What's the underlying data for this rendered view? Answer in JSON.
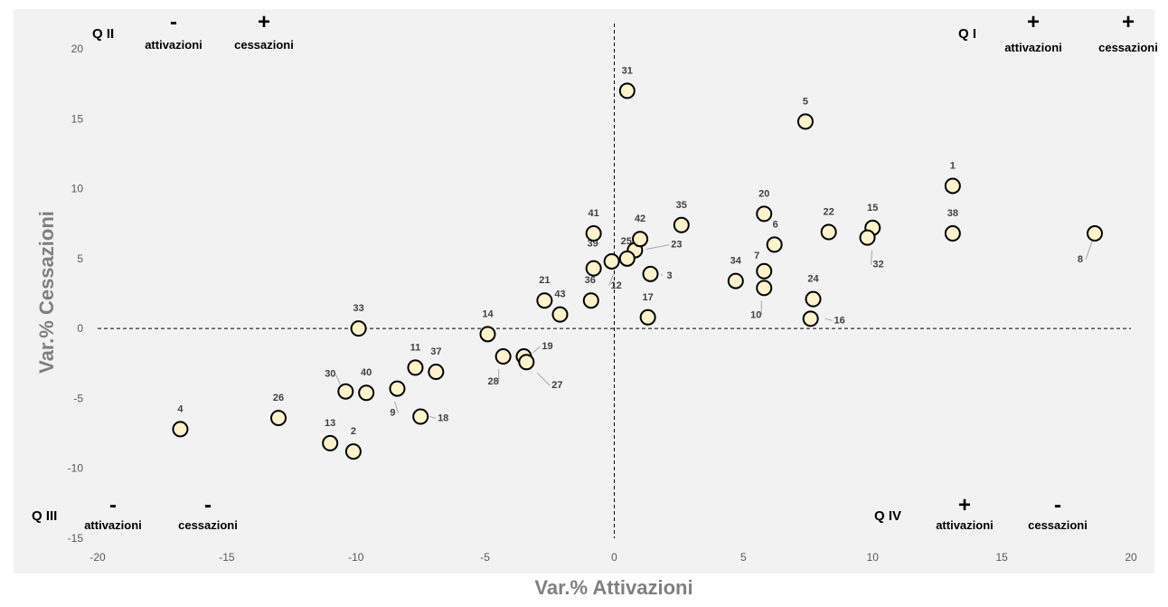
{
  "chart_data": {
    "type": "scatter",
    "title": "",
    "xlabel": "Var.% Attivazioni",
    "ylabel": "Var.% Cessazioni",
    "xlim": [
      -20,
      20
    ],
    "ylim": [
      -15,
      20
    ],
    "xticks": [
      -20,
      -15,
      -10,
      -5,
      0,
      5,
      10,
      15,
      20
    ],
    "yticks": [
      -15,
      -10,
      -5,
      0,
      5,
      10,
      15,
      20
    ],
    "grid": false,
    "colors": {
      "plot_bg": "#f2f2f2",
      "marker_fill": "#fff2cc",
      "marker_stroke": "#000000",
      "axis_line": "#000000",
      "leader": "#a6a6a6"
    },
    "quadrants": [
      {
        "title": "Q I",
        "sign_1": "+",
        "word_1": "attivazioni",
        "sign_2": "+",
        "word_2": "cessazioni"
      },
      {
        "title": "Q II",
        "sign_1": "-",
        "word_1": "attivazioni",
        "sign_2": "+",
        "word_2": "cessazioni"
      },
      {
        "title": "Q III",
        "sign_1": "-",
        "word_1": "attivazioni",
        "sign_2": "-",
        "word_2": "cessazioni"
      },
      {
        "title": "Q IV",
        "sign_1": "+",
        "word_1": "attivazioni",
        "sign_2": "-",
        "word_2": "cessazioni"
      }
    ],
    "points": [
      {
        "label": "1",
        "x": 13.1,
        "y": 10.2
      },
      {
        "label": "2",
        "x": -10.1,
        "y": -8.8
      },
      {
        "label": "3",
        "x": 1.4,
        "y": 3.9
      },
      {
        "label": "4",
        "x": -16.8,
        "y": -7.2
      },
      {
        "label": "5",
        "x": 7.4,
        "y": 14.8
      },
      {
        "label": "6",
        "x": 6.2,
        "y": 6.0
      },
      {
        "label": "7",
        "x": 5.8,
        "y": 4.1
      },
      {
        "label": "8",
        "x": 18.6,
        "y": 6.8
      },
      {
        "label": "9",
        "x": -8.4,
        "y": -4.3
      },
      {
        "label": "10",
        "x": 5.8,
        "y": 2.9
      },
      {
        "label": "11",
        "x": -7.7,
        "y": -2.8
      },
      {
        "label": "12",
        "x": -0.1,
        "y": 4.8
      },
      {
        "label": "13",
        "x": -11.0,
        "y": -8.2
      },
      {
        "label": "14",
        "x": -4.9,
        "y": -0.4
      },
      {
        "label": "15",
        "x": 10.0,
        "y": 7.2
      },
      {
        "label": "16",
        "x": 7.6,
        "y": 0.7
      },
      {
        "label": "17",
        "x": 1.3,
        "y": 0.8
      },
      {
        "label": "18",
        "x": -7.5,
        "y": -6.3
      },
      {
        "label": "19",
        "x": -3.5,
        "y": -2.0
      },
      {
        "label": "20",
        "x": 5.8,
        "y": 8.2
      },
      {
        "label": "21",
        "x": -2.7,
        "y": 2.0
      },
      {
        "label": "22",
        "x": 8.3,
        "y": 6.9
      },
      {
        "label": "23",
        "x": 0.8,
        "y": 5.6
      },
      {
        "label": "24",
        "x": 7.7,
        "y": 2.1
      },
      {
        "label": "25",
        "x": 0.5,
        "y": 5.0
      },
      {
        "label": "26",
        "x": -13.0,
        "y": -6.4
      },
      {
        "label": "27",
        "x": -3.4,
        "y": -2.4
      },
      {
        "label": "28",
        "x": -4.3,
        "y": -2.0
      },
      {
        "label": "30",
        "x": -10.4,
        "y": -4.5
      },
      {
        "label": "31",
        "x": 0.5,
        "y": 17.0
      },
      {
        "label": "32",
        "x": 9.8,
        "y": 6.5
      },
      {
        "label": "33",
        "x": -9.9,
        "y": 0.0
      },
      {
        "label": "34",
        "x": 4.7,
        "y": 3.4
      },
      {
        "label": "35",
        "x": 2.6,
        "y": 7.4
      },
      {
        "label": "36",
        "x": -0.9,
        "y": 2.0
      },
      {
        "label": "37",
        "x": -6.9,
        "y": -3.1
      },
      {
        "label": "38",
        "x": 13.1,
        "y": 6.8
      },
      {
        "label": "39",
        "x": -0.8,
        "y": 4.3
      },
      {
        "label": "40",
        "x": -9.6,
        "y": -4.6
      },
      {
        "label": "41",
        "x": -0.8,
        "y": 6.8
      },
      {
        "label": "42",
        "x": 1.0,
        "y": 6.4
      },
      {
        "label": "43",
        "x": -2.1,
        "y": 1.0
      }
    ]
  }
}
